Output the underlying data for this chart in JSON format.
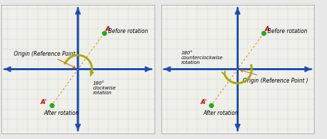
{
  "background_color": "#e8e8e8",
  "panel_bg": "#f0f0eb",
  "grid_color": "#cccccc",
  "axis_color": "#1a4db5",
  "axis_lw": 2.0,
  "point_A": [
    1.3,
    1.8
  ],
  "point_Ap": [
    -1.3,
    -1.8
  ],
  "point_color": "#22aa22",
  "point_size": 18,
  "label_A_color": "#cc0000",
  "label_Ap_color": "#cc0000",
  "origin_arrow_color": "#cc6600",
  "dashed_color": "#cc8800",
  "rotation_arrow_color": "#aaaa00",
  "text_before": "Before rotation",
  "text_after": "After rotation",
  "text_origin": "Origin (Reference Point )",
  "text_A": "A",
  "text_Ap": "A'",
  "left_rotation_label": "180°\nclockwise\nrotation",
  "right_rotation_label": "180°\ncounterclockwise\nrotation",
  "xlim": [
    -3.8,
    3.8
  ],
  "ylim": [
    -3.2,
    3.2
  ],
  "font_size_label": 6.5,
  "font_size_annot": 5.5,
  "font_size_rot": 5.0
}
